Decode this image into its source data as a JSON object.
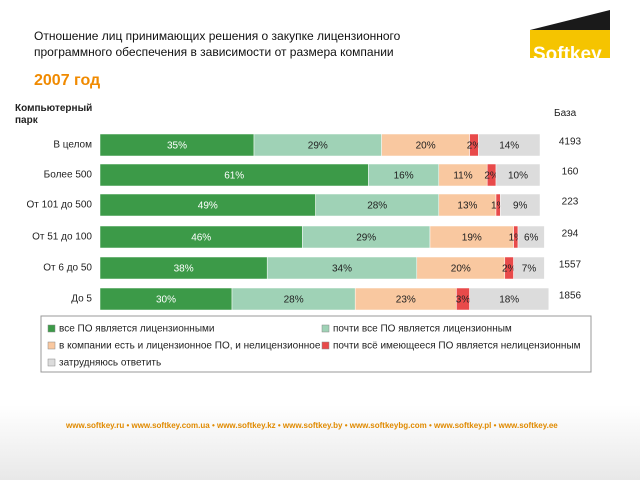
{
  "header": {
    "title": "Отношение лиц принимающих решения о закупке лицензионного программного обеспечения в зависимости от размера компании",
    "logo": "Softkey"
  },
  "chart_data": {
    "type": "stacked-bar",
    "subtitle": "2007 год",
    "category_axis_label": "Компьютерный парк",
    "base_label": "База",
    "categories": [
      "В целом",
      "Более 500",
      "От 101 до 500",
      "От 51 до 100",
      "От 6 до 50",
      "До 5"
    ],
    "base_values": [
      4193,
      160,
      223,
      294,
      1557,
      1856
    ],
    "xlim": [
      0,
      100
    ],
    "series": [
      {
        "name": "все ПО является лицензионными",
        "color": "#3c9a48",
        "values": [
          35,
          61,
          49,
          46,
          38,
          30
        ],
        "value_labels": [
          "35%",
          "61%",
          "49%",
          "46%",
          "38%",
          "30%"
        ]
      },
      {
        "name": "почти все ПО является лицензионным",
        "color": "#9fd2b6",
        "values": [
          29,
          16,
          28,
          29,
          34,
          28
        ],
        "value_labels": [
          "29%",
          "16%",
          "28%",
          "29%",
          "34%",
          "28%"
        ]
      },
      {
        "name": "в компании есть и лицензионное ПО, и нелицензионное",
        "color": "#f9c8a0",
        "values": [
          20,
          11,
          13,
          19,
          20,
          23
        ],
        "value_labels": [
          "20%",
          "11%",
          "13%",
          "19%",
          "20%",
          "23%"
        ]
      },
      {
        "name": "почти всё имеющееся ПО является нелицензионным",
        "color": "#e84a4a",
        "values": [
          2,
          2,
          1,
          1,
          2,
          3
        ],
        "value_labels": [
          "2%",
          "2%",
          "1%",
          "1%",
          "2%",
          "3%"
        ]
      },
      {
        "name": "затрудняюсь ответить",
        "color": "#dcdcdc",
        "values": [
          14,
          10,
          9,
          6,
          7,
          18
        ],
        "value_labels": [
          "14%",
          "10%",
          "9%",
          "6%",
          "7%",
          "18%"
        ]
      }
    ]
  },
  "footer": {
    "links": "www.softkey.ru • www.softkey.com.ua • www.softkey.kz • www.softkey.by • www.softkeybg.com • www.softkey.pl • www.softkey.ee"
  }
}
